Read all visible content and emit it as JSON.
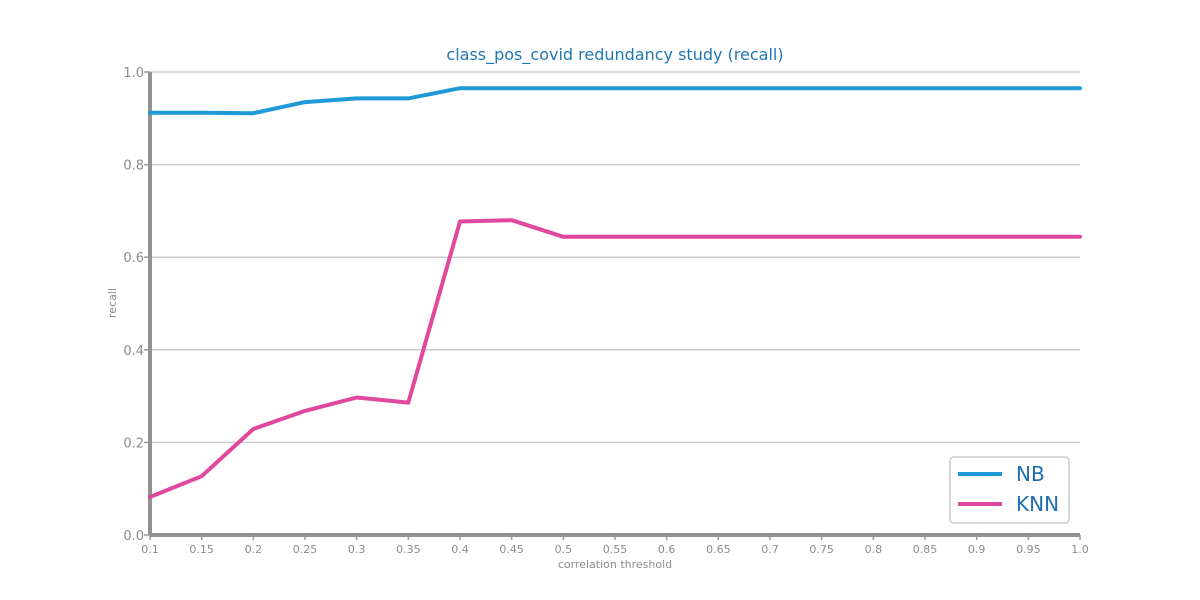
{
  "chart_data": {
    "type": "line",
    "title": "class_pos_covid redundancy study (recall)",
    "xlabel": "correlation threshold",
    "ylabel": "recall",
    "x": [
      0.1,
      0.15,
      0.2,
      0.25,
      0.3,
      0.35,
      0.4,
      0.45,
      0.5,
      0.55,
      0.6,
      0.65,
      0.7,
      0.75,
      0.8,
      0.85,
      0.9,
      0.95,
      1.0
    ],
    "x_tick_labels": [
      "0.1",
      "0.15",
      "0.2",
      "0.25",
      "0.3",
      "0.35",
      "0.4",
      "0.45",
      "0.5",
      "0.55",
      "0.6",
      "0.65",
      "0.7",
      "0.75",
      "0.8",
      "0.85",
      "0.9",
      "0.95",
      "1.0"
    ],
    "xlim": [
      0.1,
      1.0
    ],
    "ylim": [
      0.0,
      1.0
    ],
    "y_ticks": [
      0.0,
      0.2,
      0.4,
      0.6,
      0.8,
      1.0
    ],
    "y_tick_labels": [
      "0.0",
      "0.2",
      "0.4",
      "0.6",
      "0.8",
      "1.0"
    ],
    "grid": "horizontal",
    "legend_position": "bottom-right",
    "series": [
      {
        "name": "NB",
        "color": "#1f9ad6",
        "values": [
          0.912,
          0.912,
          0.911,
          0.935,
          0.943,
          0.943,
          0.965,
          0.965,
          0.965,
          0.965,
          0.965,
          0.965,
          0.965,
          0.965,
          0.965,
          0.965,
          0.965,
          0.965,
          0.965
        ]
      },
      {
        "name": "KNN",
        "color": "#e0479e",
        "values": [
          0.082,
          0.127,
          0.229,
          0.268,
          0.297,
          0.286,
          0.677,
          0.68,
          0.644,
          0.644,
          0.644,
          0.644,
          0.644,
          0.644,
          0.644,
          0.644,
          0.644,
          0.644,
          0.644
        ]
      }
    ]
  }
}
